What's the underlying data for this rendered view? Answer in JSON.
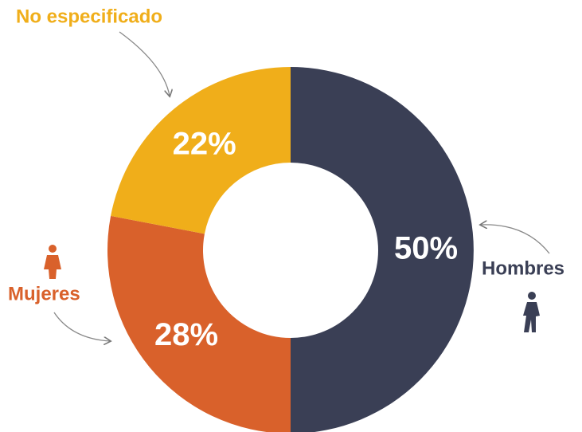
{
  "chart_data": {
    "type": "pie",
    "categories": [
      "Hombres",
      "Mujeres",
      "No especificado"
    ],
    "values": [
      50,
      28,
      22
    ],
    "value_labels": [
      "50%",
      "28%",
      "22%"
    ],
    "colors": [
      "#3a3f55",
      "#d9612b",
      "#f0ae1a"
    ]
  }
}
